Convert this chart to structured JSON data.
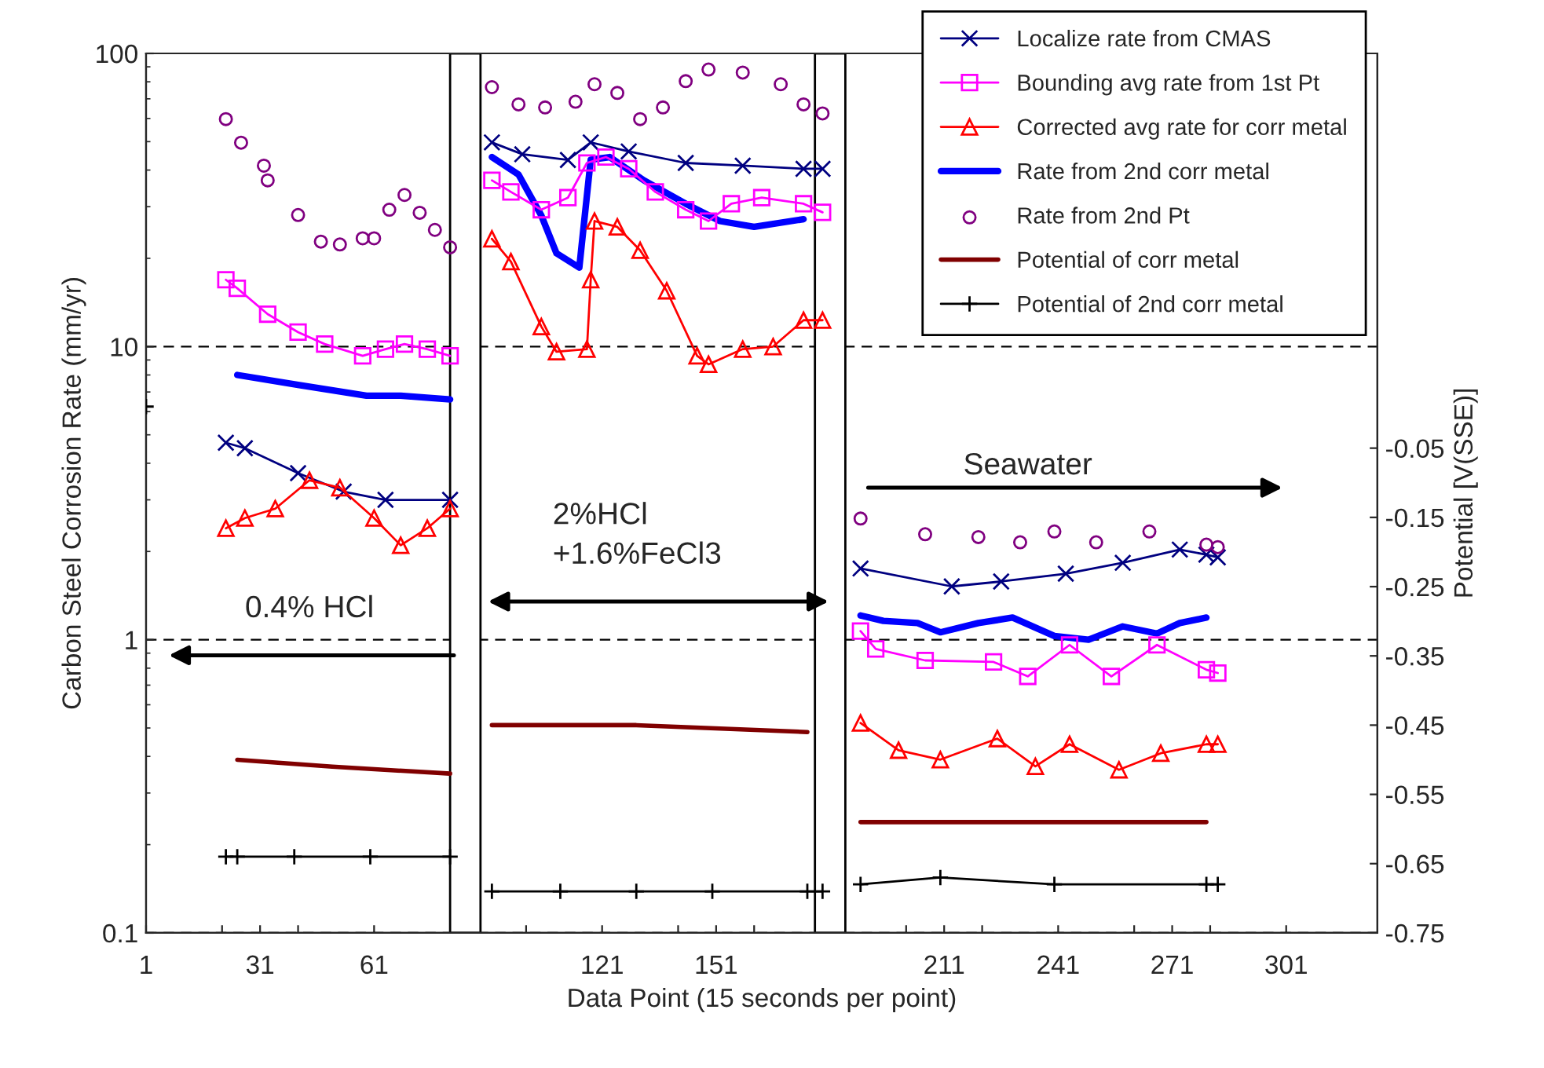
{
  "chart_data": {
    "type": "line",
    "xlabel": "Data Point (15 seconds per point)",
    "ylabel": "Carbon Steel Corrosion Rate (mm/yr)",
    "y2label": "Potential [V(SSE)]",
    "log": "y",
    "grid": "y",
    "legend": "top right",
    "xlim": [
      1,
      325
    ],
    "ylim": [
      0.1,
      100
    ],
    "y2lim": [
      -0.75,
      0.52
    ],
    "xticks": [
      1,
      {
        "value": 21,
        "label": null
      },
      31,
      {
        "value": 41,
        "label": null
      },
      61,
      {
        "value": 101,
        "label": null
      },
      121,
      {
        "value": 141,
        "label": null
      },
      151,
      {
        "value": 161,
        "label": null
      },
      {
        "value": 201,
        "label": null
      },
      211,
      {
        "value": 221,
        "label": null
      },
      241,
      {
        "value": 261,
        "label": null
      },
      271,
      {
        "value": 281,
        "label": null
      },
      301
    ],
    "yticks": [
      0.1,
      1,
      10,
      100
    ],
    "y2ticks": [
      -0.75,
      -0.65,
      -0.55,
      -0.45,
      -0.35,
      -0.25,
      -0.15,
      -0.05
    ],
    "bands": [
      {
        "axis": "x",
        "from": 81,
        "to": 89,
        "color": "#ffffff"
      },
      {
        "axis": "x",
        "from": 177,
        "to": 185,
        "color": "#ffffff"
      }
    ],
    "annotations": [
      "0.4% HCl",
      "2%HCl\n+1.6%FeCl3",
      "Seawater"
    ],
    "series": [
      {
        "name": "Localize rate from CMAS",
        "marker": "cross",
        "color": "#000080",
        "x": [
          22,
          27,
          41,
          53,
          64,
          81,
          85,
          92,
          100,
          112,
          118,
          128,
          143,
          158,
          174,
          179,
          182,
          189,
          213,
          226,
          243,
          258,
          273,
          280,
          283
        ],
        "values": [
          4.7,
          4.5,
          3.7,
          3.2,
          3.0,
          3.0,
          null,
          49.7,
          45.3,
          43.3,
          49.7,
          46.3,
          42.3,
          41.4,
          40.4,
          40.4,
          null,
          1.75,
          1.52,
          1.58,
          1.68,
          1.83,
          2.03,
          1.95,
          1.91
        ]
      },
      {
        "name": "Bounding avg rate from 1st Pt",
        "marker": "square",
        "color": "#ff00ff",
        "x": [
          22,
          25,
          33,
          41,
          48,
          58,
          64,
          69,
          75,
          81,
          85,
          92,
          97,
          105,
          112,
          117,
          122,
          128,
          135,
          143,
          149,
          155,
          163,
          174,
          179,
          182,
          189,
          193,
          206,
          224,
          233,
          244,
          255,
          267,
          280,
          283
        ],
        "values": [
          16.9,
          15.8,
          12.9,
          11.2,
          10.2,
          9.3,
          9.8,
          10.2,
          9.8,
          9.3,
          null,
          36.9,
          33.7,
          29.3,
          32.2,
          42.3,
          44.3,
          40.4,
          33.7,
          29.3,
          26.8,
          30.7,
          32.2,
          30.7,
          28.7,
          null,
          1.07,
          0.93,
          0.85,
          0.84,
          0.75,
          0.96,
          0.75,
          0.96,
          0.79,
          0.77
        ]
      },
      {
        "name": "Corrected avg rate for corr metal",
        "marker": "triangle",
        "color": "#ff0000",
        "x": [
          22,
          27,
          35,
          44,
          52,
          61,
          68,
          75,
          81,
          85,
          92,
          97,
          105,
          109,
          117,
          118,
          119,
          125,
          131,
          138,
          146,
          149,
          158,
          166,
          174,
          179,
          182,
          189,
          199,
          210,
          225,
          235,
          244,
          257,
          268,
          280,
          283
        ],
        "values": [
          2.4,
          2.6,
          2.8,
          3.5,
          3.3,
          2.6,
          2.1,
          2.4,
          2.8,
          null,
          23.3,
          19.5,
          11.7,
          9.6,
          9.8,
          16.9,
          26.8,
          25.6,
          21.3,
          15.5,
          9.3,
          8.7,
          9.8,
          10.0,
          12.3,
          12.3,
          null,
          0.52,
          0.42,
          0.39,
          0.46,
          0.37,
          0.44,
          0.36,
          0.41,
          0.44,
          0.44
        ]
      },
      {
        "name": "Rate from 2nd corr metal",
        "marker": "none",
        "color": "#0000ff",
        "x": [
          25,
          41,
          59,
          68,
          81,
          85,
          92,
          99,
          105,
          109,
          115,
          118,
          123,
          132,
          143,
          152,
          161,
          174,
          182,
          189,
          195,
          204,
          210,
          220,
          229,
          240,
          249,
          258,
          267,
          273,
          280
        ],
        "values": [
          8.0,
          7.4,
          6.8,
          6.8,
          6.6,
          null,
          44.3,
          38.6,
          28,
          20.8,
          18.6,
          43.4,
          44.3,
          36.9,
          30.7,
          26.8,
          25.6,
          27.2,
          null,
          1.21,
          1.16,
          1.14,
          1.06,
          1.14,
          1.19,
          1.03,
          1.0,
          1.11,
          1.05,
          1.14,
          1.19
        ]
      },
      {
        "name": "Rate from 2nd Pt",
        "type": "scatter",
        "marker": "circle",
        "color": "#800080",
        "x": [
          22,
          26,
          32,
          33,
          41,
          47,
          52,
          58,
          61,
          65,
          69,
          73,
          77,
          81,
          92,
          99,
          106,
          114,
          119,
          125,
          131,
          137,
          143,
          149,
          158,
          168,
          174,
          179,
          189,
          206,
          220,
          231,
          240,
          251,
          265,
          280,
          283
        ],
        "values": [
          59.7,
          49.6,
          41.4,
          36.9,
          28.1,
          22.8,
          22.3,
          23.4,
          23.4,
          29.3,
          32.9,
          28.6,
          25.0,
          21.8,
          76.7,
          67,
          65.4,
          68.4,
          78.5,
          73.3,
          59.7,
          65.4,
          80.4,
          88.1,
          86,
          78.5,
          67,
          62.4,
          2.59,
          2.29,
          2.24,
          2.15,
          2.34,
          2.15,
          2.34,
          2.11,
          2.07
        ]
      },
      {
        "name": "Potential of corr metal",
        "marker": "none",
        "axis": "y2",
        "color": "#800000",
        "x": [
          25,
          50,
          81,
          85,
          92,
          130,
          175,
          182,
          189,
          280
        ],
        "values": [
          -0.5,
          -0.51,
          -0.52,
          null,
          -0.45,
          -0.45,
          -0.46,
          null,
          -0.59,
          -0.59
        ]
      },
      {
        "name": "Potential of 2nd corr metal",
        "marker": "plus",
        "axis": "y2",
        "color": "#000000",
        "x": [
          1,
          10,
          22,
          25,
          40,
          60,
          81,
          85,
          92,
          110,
          130,
          150,
          175,
          179,
          182,
          189,
          210,
          240,
          280,
          283
        ],
        "values": [
          0.01,
          null,
          -0.64,
          -0.64,
          -0.64,
          -0.64,
          -0.64,
          null,
          -0.69,
          -0.69,
          -0.69,
          -0.69,
          -0.69,
          -0.69,
          null,
          -0.68,
          -0.67,
          -0.68,
          -0.68,
          -0.68
        ]
      }
    ]
  }
}
